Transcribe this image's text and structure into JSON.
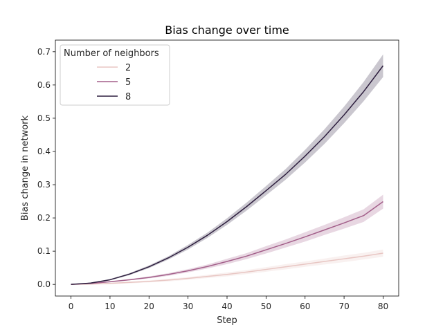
{
  "chart_data": {
    "type": "line",
    "title": "Bias change over time",
    "xlabel": "Step",
    "ylabel": "Bias change in network",
    "xlim": [
      -4,
      84
    ],
    "ylim": [
      -0.035,
      0.735
    ],
    "xticks": [
      0,
      10,
      20,
      30,
      40,
      50,
      60,
      70,
      80
    ],
    "yticks": [
      0.0,
      0.1,
      0.2,
      0.3,
      0.4,
      0.5,
      0.6,
      0.7
    ],
    "grid": false,
    "legend": {
      "title": "Number of neighbors",
      "placement": "top-left"
    },
    "x": [
      0,
      5,
      10,
      15,
      20,
      25,
      30,
      35,
      40,
      45,
      50,
      55,
      60,
      65,
      70,
      75,
      80
    ],
    "series": [
      {
        "name": "2",
        "color": "#e8c6c3",
        "values": [
          0.0,
          0.001,
          0.003,
          0.006,
          0.009,
          0.013,
          0.018,
          0.024,
          0.03,
          0.037,
          0.045,
          0.053,
          0.061,
          0.069,
          0.077,
          0.085,
          0.094
        ],
        "ci": [
          0.0,
          0.001,
          0.002,
          0.003,
          0.003,
          0.004,
          0.004,
          0.005,
          0.006,
          0.006,
          0.007,
          0.008,
          0.008,
          0.009,
          0.01,
          0.01,
          0.011
        ]
      },
      {
        "name": "5",
        "color": "#a35f8a",
        "values": [
          0.0,
          0.003,
          0.008,
          0.014,
          0.021,
          0.03,
          0.041,
          0.054,
          0.069,
          0.085,
          0.104,
          0.123,
          0.143,
          0.164,
          0.185,
          0.207,
          0.249
        ],
        "ci": [
          0.0,
          0.001,
          0.002,
          0.002,
          0.003,
          0.004,
          0.005,
          0.006,
          0.008,
          0.009,
          0.011,
          0.012,
          0.014,
          0.015,
          0.017,
          0.019,
          0.021
        ]
      },
      {
        "name": "8",
        "color": "#2d1e3e",
        "values": [
          0.0,
          0.004,
          0.014,
          0.031,
          0.053,
          0.08,
          0.112,
          0.148,
          0.189,
          0.234,
          0.282,
          0.331,
          0.386,
          0.445,
          0.51,
          0.58,
          0.658
        ],
        "ci": [
          0.0,
          0.001,
          0.002,
          0.003,
          0.004,
          0.005,
          0.007,
          0.008,
          0.01,
          0.012,
          0.014,
          0.016,
          0.019,
          0.022,
          0.025,
          0.029,
          0.034
        ]
      }
    ]
  }
}
